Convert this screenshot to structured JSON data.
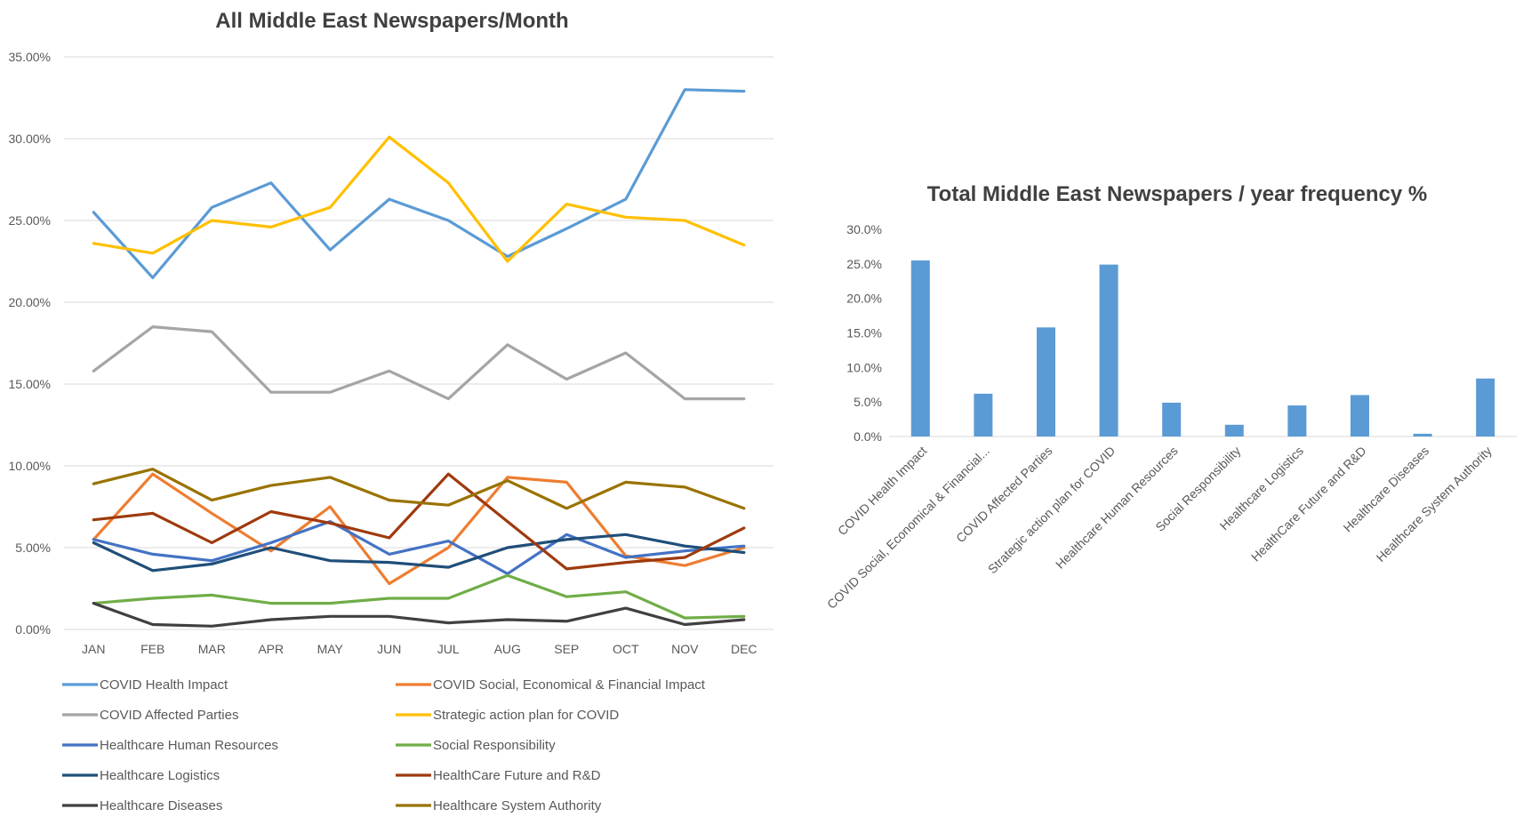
{
  "chart_data": [
    {
      "type": "line",
      "title": "All Middle East Newspapers/Month",
      "categories": [
        "JAN",
        "FEB",
        "MAR",
        "APR",
        "MAY",
        "JUN",
        "JUL",
        "AUG",
        "SEP",
        "OCT",
        "NOV",
        "DEC"
      ],
      "ylim": [
        0,
        35
      ],
      "yticks": [
        "0.00%",
        "5.00%",
        "10.00%",
        "15.00%",
        "20.00%",
        "25.00%",
        "30.00%",
        "35.00%"
      ],
      "grid": true,
      "legend_position": "bottom",
      "series": [
        {
          "name": "COVID Health Impact",
          "color": "#5b9bd5",
          "values": [
            25.5,
            21.5,
            25.8,
            27.3,
            23.2,
            26.3,
            25.0,
            22.8,
            24.5,
            26.3,
            33.0,
            32.9
          ]
        },
        {
          "name": "COVID Social, Economical & Financial Impact",
          "color": "#ed7d31",
          "values": [
            5.5,
            9.5,
            7.1,
            4.8,
            7.5,
            2.8,
            5.0,
            9.3,
            9.0,
            4.5,
            3.9,
            5.0
          ]
        },
        {
          "name": "COVID Affected Parties",
          "color": "#a5a5a5",
          "values": [
            15.8,
            18.5,
            18.2,
            14.5,
            14.5,
            15.8,
            14.1,
            17.4,
            15.3,
            16.9,
            14.1,
            14.1
          ]
        },
        {
          "name": "Strategic action plan for COVID",
          "color": "#ffc000",
          "values": [
            23.6,
            23.0,
            25.0,
            24.6,
            25.8,
            30.1,
            27.3,
            22.5,
            26.0,
            25.2,
            25.0,
            23.5
          ]
        },
        {
          "name": "Healthcare Human Resources",
          "color": "#4472c4",
          "values": [
            5.5,
            4.6,
            4.2,
            5.3,
            6.6,
            4.6,
            5.4,
            3.4,
            5.8,
            4.4,
            4.8,
            5.1
          ]
        },
        {
          "name": "Social Responsibility",
          "color": "#70ad47",
          "values": [
            1.6,
            1.9,
            2.1,
            1.6,
            1.6,
            1.9,
            1.9,
            3.3,
            2.0,
            2.3,
            0.7,
            0.8
          ]
        },
        {
          "name": "Healthcare Logistics",
          "color": "#1f4e79",
          "values": [
            5.3,
            3.6,
            4.0,
            5.0,
            4.2,
            4.1,
            3.8,
            5.0,
            5.5,
            5.8,
            5.1,
            4.7
          ]
        },
        {
          "name": "HealthCare Future and R&D",
          "color": "#9e3a0e",
          "values": [
            6.7,
            7.1,
            5.3,
            7.2,
            6.5,
            5.6,
            9.5,
            6.6,
            3.7,
            4.1,
            4.4,
            6.2
          ]
        },
        {
          "name": "Healthcare Diseases",
          "color": "#404040",
          "values": [
            1.6,
            0.3,
            0.2,
            0.6,
            0.8,
            0.8,
            0.4,
            0.6,
            0.5,
            1.3,
            0.3,
            0.6
          ]
        },
        {
          "name": "Healthcare System Authority",
          "color": "#997300",
          "values": [
            8.9,
            9.8,
            7.9,
            8.8,
            9.3,
            7.9,
            7.6,
            9.1,
            7.4,
            9.0,
            8.7,
            7.4
          ]
        }
      ]
    },
    {
      "type": "bar",
      "title": "Total Middle East Newspapers / year frequency %",
      "categories": [
        "COVID Health Impact",
        "COVID Social, Economical & Financial...",
        "COVID Affected Parties",
        "Strategic action plan for COVID",
        "Healthcare Human Resources",
        "Social Responsibility",
        "Healthcare Logistics",
        "HealthCare Future and R&D",
        "Healthcare Diseases",
        "Healthcare System Authority"
      ],
      "values": [
        25.5,
        6.2,
        15.8,
        24.9,
        4.9,
        1.7,
        4.5,
        6.0,
        0.4,
        8.4
      ],
      "color": "#5b9bd5",
      "ylim": [
        0,
        30
      ],
      "yticks": [
        "0.0%",
        "5.0%",
        "10.0%",
        "15.0%",
        "20.0%",
        "25.0%",
        "30.0%"
      ],
      "grid": false
    }
  ]
}
